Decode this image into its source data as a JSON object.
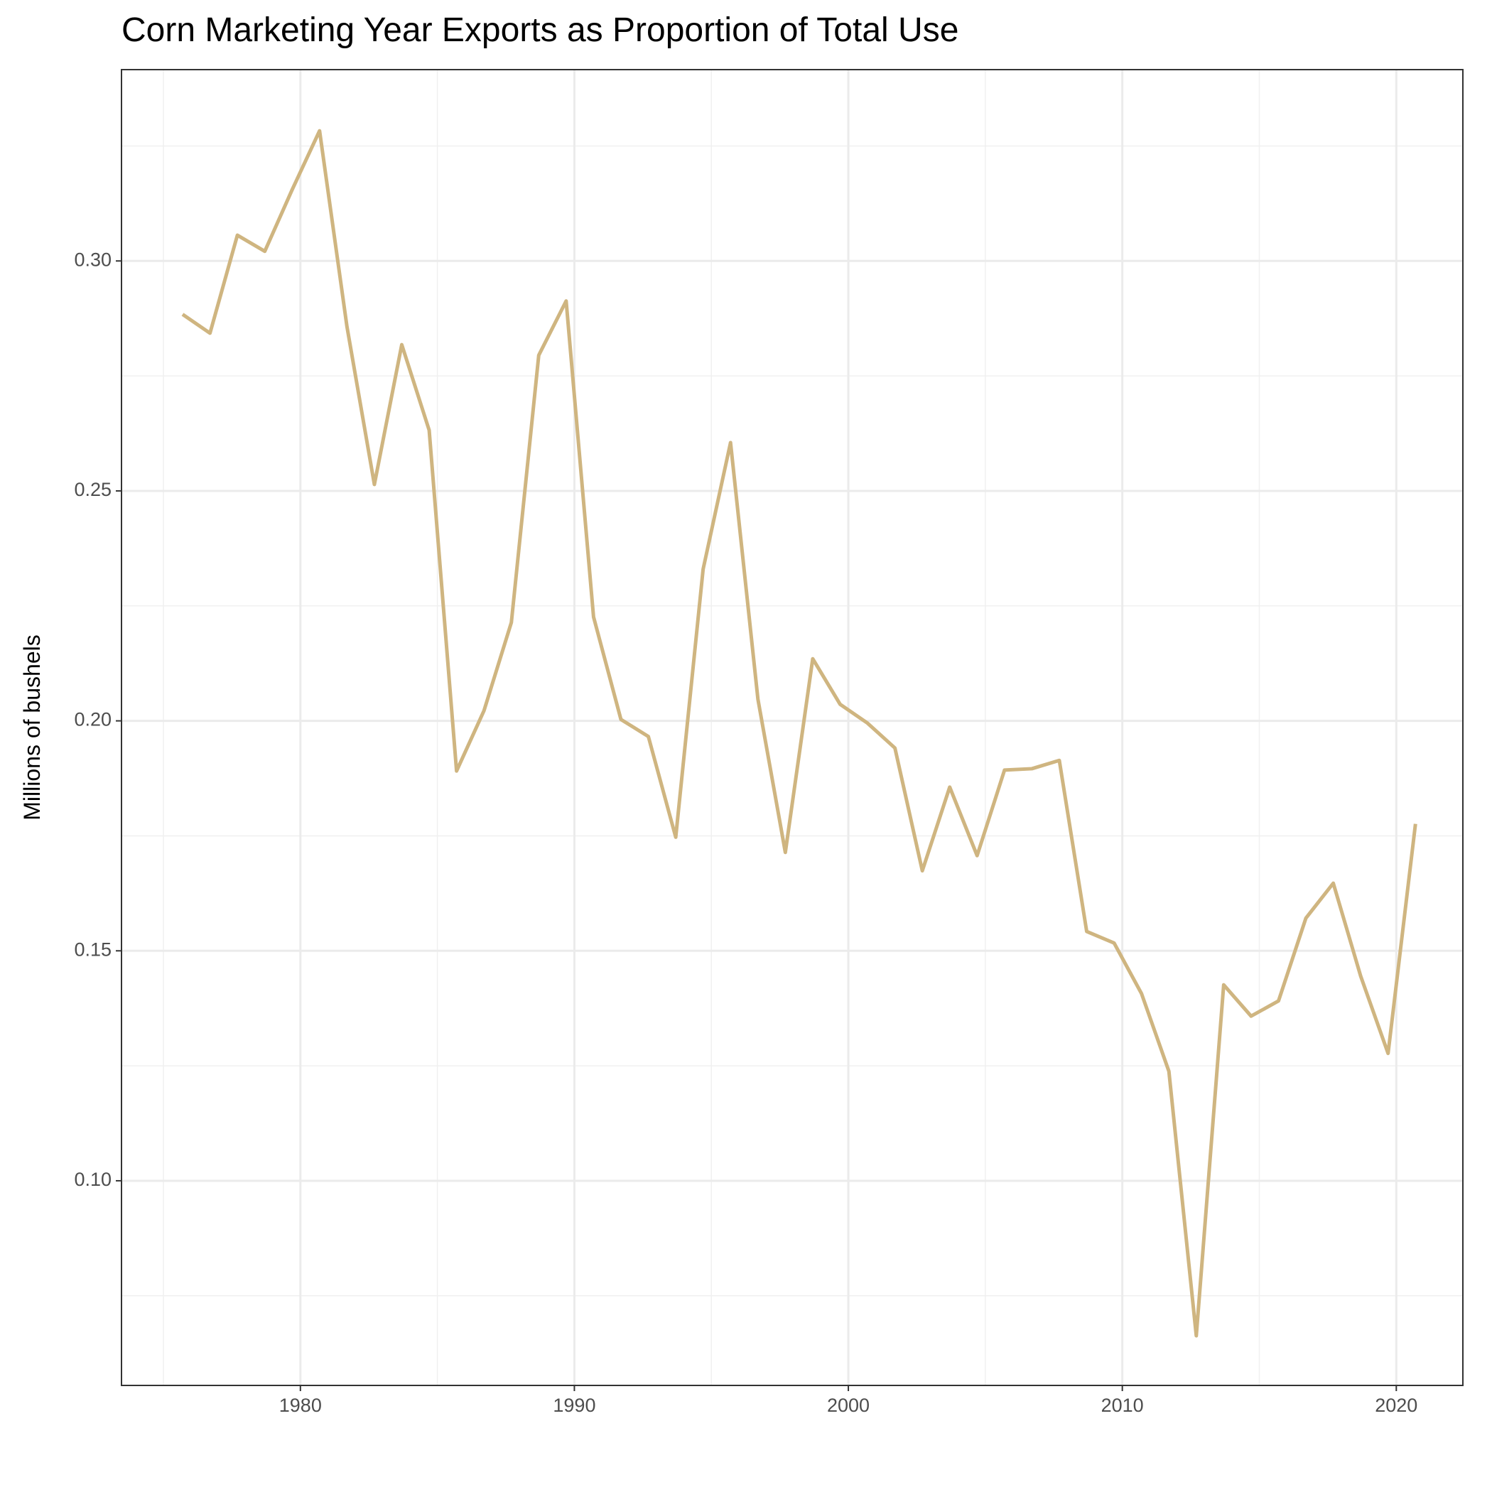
{
  "chart_data": {
    "type": "line",
    "title": "Corn Marketing Year Exports as Proportion of Total Use",
    "y_label": "Millions of bushels",
    "x": [
      1975.7,
      1976.7,
      1977.7,
      1978.7,
      1979.7,
      1980.7,
      1981.7,
      1982.7,
      1983.7,
      1984.7,
      1985.7,
      1986.7,
      1987.7,
      1988.7,
      1989.7,
      1990.7,
      1991.7,
      1992.7,
      1993.7,
      1994.7,
      1995.7,
      1996.7,
      1997.7,
      1998.7,
      1999.7,
      2000.7,
      2001.7,
      2002.7,
      2003.7,
      2004.7,
      2005.7,
      2006.7,
      2007.7,
      2008.7,
      2009.7,
      2010.7,
      2011.7,
      2012.7,
      2013.7,
      2014.7,
      2015.7,
      2016.7,
      2017.7,
      2018.7,
      2019.7,
      2020.7
    ],
    "series": [
      {
        "color": "#cfb580",
        "values": [
          0.2884,
          0.2843,
          0.3056,
          0.3021,
          0.3155,
          0.3283,
          0.2857,
          0.2514,
          0.2818,
          0.2632,
          0.1891,
          0.2022,
          0.2214,
          0.2795,
          0.2913,
          0.2226,
          0.2003,
          0.1966,
          0.1747,
          0.233,
          0.2605,
          0.2047,
          0.1714,
          0.2135,
          0.2036,
          0.1995,
          0.1941,
          0.1674,
          0.1856,
          0.1707,
          0.1893,
          0.1896,
          0.1914,
          0.1542,
          0.1517,
          0.1407,
          0.1238,
          0.0663,
          0.1426,
          0.1358,
          0.1391,
          0.1571,
          0.1647,
          0.1445,
          0.1277,
          0.1776
        ]
      }
    ],
    "xlim": [
      1973.47,
      2022.43
    ],
    "xticks": [
      1980,
      1990,
      2000,
      2010,
      2020
    ],
    "xminorticks": [
      1975,
      1985,
      1995,
      2005,
      2015
    ],
    "ylim": [
      0.0555,
      0.3416
    ],
    "yticks": [
      {
        "value": 0.1,
        "label": "0.10"
      },
      {
        "value": 0.15,
        "label": "0.15"
      },
      {
        "value": 0.2,
        "label": "0.20"
      },
      {
        "value": 0.25,
        "label": "0.25"
      },
      {
        "value": 0.3,
        "label": "0.30"
      }
    ],
    "yminorticks": [
      0.075,
      0.125,
      0.175,
      0.225,
      0.275,
      0.325
    ],
    "grid": true
  }
}
